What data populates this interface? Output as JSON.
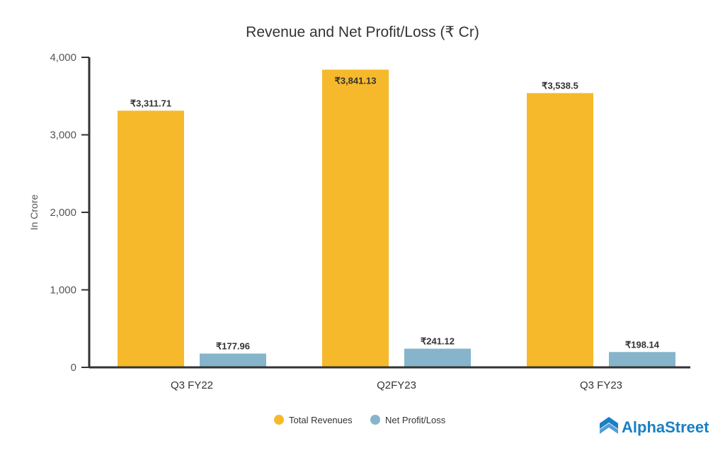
{
  "chart_data": {
    "type": "bar",
    "title": "Revenue and Net Profit/Loss (₹ Cr)",
    "xlabel": "",
    "ylabel": "In Crore",
    "ylim": [
      0,
      4000
    ],
    "yticks": [
      0,
      1000,
      2000,
      3000,
      4000
    ],
    "ytick_labels": [
      "0",
      "1,000",
      "2,000",
      "3,000",
      "4,000"
    ],
    "categories": [
      "Q3 FY22",
      "Q2FY23",
      "Q3 FY23"
    ],
    "series": [
      {
        "name": "Total Revenues",
        "color": "#F6B92B",
        "values": [
          3311.71,
          3841.13,
          3538.5
        ],
        "labels": [
          "₹3,311.71",
          "₹3,841.13",
          "₹3,538.5"
        ]
      },
      {
        "name": "Net Profit/Loss",
        "color": "#86B5CB",
        "values": [
          177.96,
          241.12,
          198.14
        ],
        "labels": [
          "₹177.96",
          "₹241.12",
          "₹198.14"
        ]
      }
    ],
    "legend_position": "bottom-center",
    "grid": false
  },
  "brand": {
    "logo_text": "AlphaStreet",
    "color": "#1A7FC4"
  }
}
